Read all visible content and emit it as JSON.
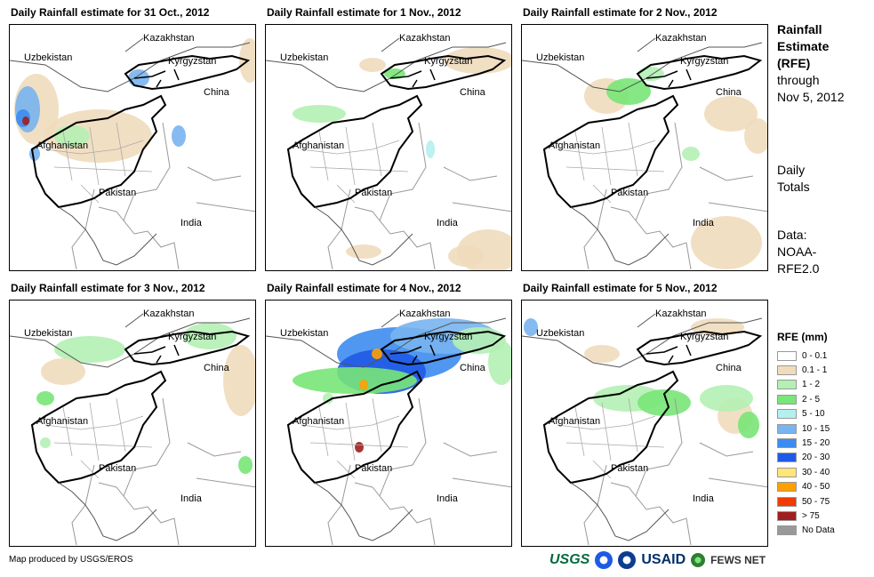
{
  "panels": [
    {
      "title": "Daily Rainfall estimate for 31 Oct., 2012"
    },
    {
      "title": "Daily Rainfall estimate for 1 Nov., 2012"
    },
    {
      "title": "Daily Rainfall estimate for 2 Nov., 2012"
    },
    {
      "title": "Daily Rainfall estimate for 3 Nov., 2012"
    },
    {
      "title": "Daily Rainfall estimate for 4 Nov., 2012"
    },
    {
      "title": "Daily Rainfall estimate for 5 Nov., 2012"
    }
  ],
  "countries": {
    "kazakhstan": "Kazakhstan",
    "uzbekistan": "Uzbekistan",
    "kyrgyzstan": "Kyrgyzstan",
    "china": "China",
    "afghanistan": "Afghanistan",
    "pakistan": "Pakistan",
    "india": "India"
  },
  "sidebar": {
    "title_line1": "Rainfall",
    "title_line2": "Estimate",
    "title_line3": "(RFE)",
    "through": "through",
    "date": "Nov 5, 2012",
    "totals_line1": "Daily",
    "totals_line2": "Totals",
    "data_line1": "Data:",
    "data_line2": "NOAA-",
    "data_line3": "RFE2.0"
  },
  "legend": {
    "title": "RFE (mm)",
    "items": [
      {
        "label": "0 - 0.1",
        "color": "#ffffff"
      },
      {
        "label": "0.1 - 1",
        "color": "#f0dcbc"
      },
      {
        "label": "1 - 2",
        "color": "#b4f0b4"
      },
      {
        "label": "2 - 5",
        "color": "#78e678"
      },
      {
        "label": "5 - 10",
        "color": "#b4f0f0"
      },
      {
        "label": "10 - 15",
        "color": "#78b4f0"
      },
      {
        "label": "15 - 20",
        "color": "#3c8cf0"
      },
      {
        "label": "20 - 30",
        "color": "#1e5ae6"
      },
      {
        "label": "30 - 40",
        "color": "#ffe678"
      },
      {
        "label": "40 - 50",
        "color": "#ffa000"
      },
      {
        "label": "50 - 75",
        "color": "#f03c00"
      },
      {
        "label": "> 75",
        "color": "#a01e1e"
      },
      {
        "label": "No Data",
        "color": "#999999"
      }
    ]
  },
  "credit": "Map produced by USGS/EROS",
  "logos": {
    "usgs": "USGS",
    "usaid": "USAID",
    "fews": "FEWS NET"
  }
}
